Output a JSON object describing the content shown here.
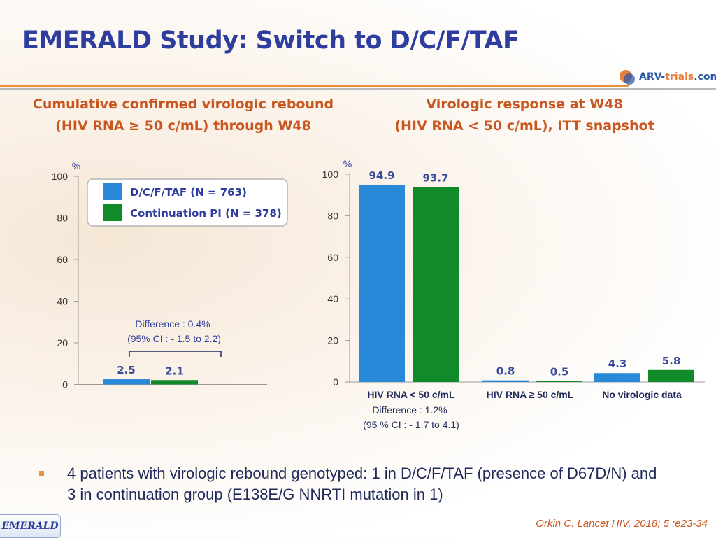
{
  "slide": {
    "title": "EMERALD Study: Switch to D/C/F/TAF",
    "logo": {
      "main": "ARV-",
      "accent": "trials",
      "suffix": ".com"
    },
    "subheading_left": {
      "line1": "Cumulative confirmed virologic rebound",
      "line2": "(HIV RNA ≥ 50 c/mL) through W48"
    },
    "subheading_right": {
      "line1": "Virologic response at W48",
      "line2": "(HIV RNA < 50 c/mL), ITT snapshot"
    },
    "bullet": "4 patients with virologic rebound genotyped: 1 in D/C/F/TAF (presence of D67D/N) and 3 in continuation group (E138E/G NNRTI mutation in 1)",
    "footer_tag": "EMERALD",
    "citation": "Orkin C. Lancet HIV. 2018; 5 :e23-34"
  },
  "colors": {
    "dcftaf": "#2a88d8",
    "continuation": "#118a2a",
    "title": "#2f3e9e",
    "subhead": "#c8561e",
    "rule": "#e8903a"
  },
  "chart_data": [
    {
      "type": "bar",
      "ylabel": "%",
      "ylim": [
        0,
        100
      ],
      "yticks": [
        0,
        20,
        40,
        60,
        80,
        100
      ],
      "categories": [
        ""
      ],
      "series": [
        {
          "name": "D/C/F/TAF (N = 763)",
          "values": [
            2.5
          ],
          "labels": [
            "2.5"
          ]
        },
        {
          "name": "Continuation PI (N = 378)",
          "values": [
            2.1
          ],
          "labels": [
            "2.1"
          ]
        }
      ],
      "legend": "top",
      "annotation": {
        "line1": "Difference : 0.4%",
        "line2": "(95% CI : - 1.5 to 2.2)"
      }
    },
    {
      "type": "bar",
      "ylabel": "%",
      "ylim": [
        0,
        100
      ],
      "yticks": [
        0,
        20,
        40,
        60,
        80,
        100
      ],
      "categories": [
        "HIV RNA < 50 c/mL",
        "HIV RNA ≥ 50 c/mL",
        "No virologic data"
      ],
      "series": [
        {
          "name": "D/C/F/TAF (N = 763)",
          "values": [
            94.9,
            0.8,
            4.3
          ],
          "labels": [
            "94.9",
            "0.8",
            "4.3"
          ]
        },
        {
          "name": "Continuation PI (N = 378)",
          "values": [
            93.7,
            0.5,
            5.8
          ],
          "labels": [
            "93.7",
            "0.5",
            "5.8"
          ]
        }
      ],
      "annotation": {
        "line1": "Difference : 1.2%",
        "line2": "(95 % CI : - 1.7 to 4.1)"
      }
    }
  ]
}
